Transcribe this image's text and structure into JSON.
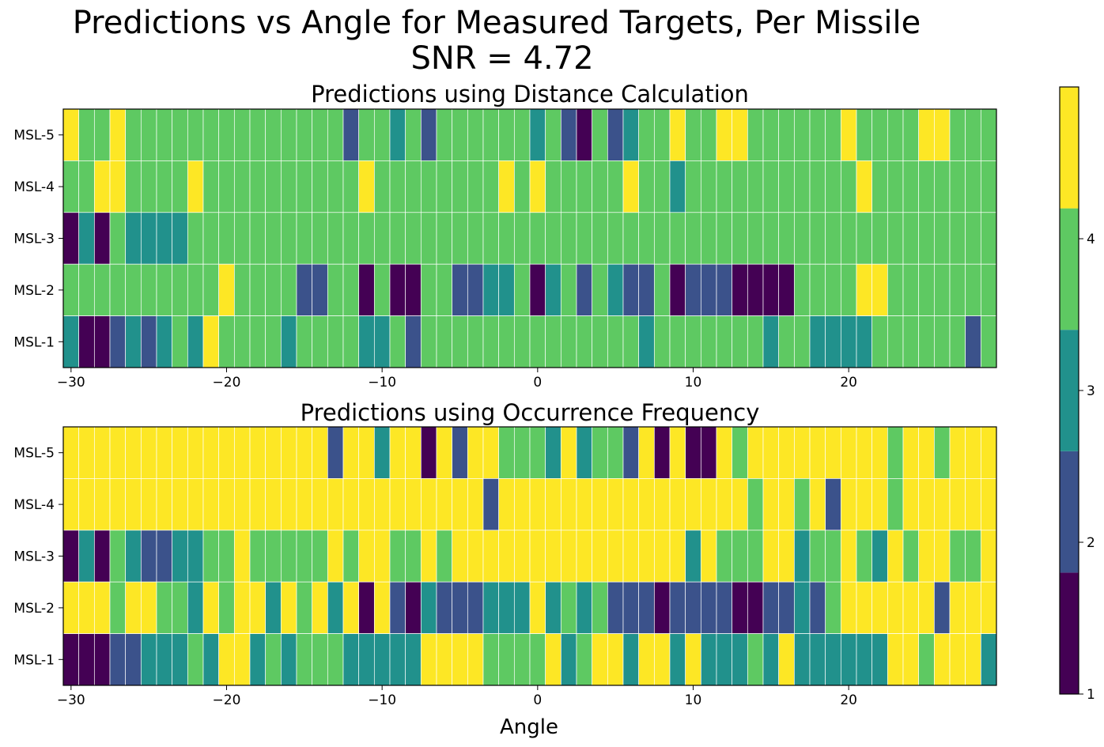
{
  "suptitle": {
    "line1": "Predictions vs Angle for Measured Targets, Per Missile",
    "line2": "SNR = 4.72"
  },
  "xlabel": "Angle",
  "colormap": {
    "name": "viridis",
    "colors": {
      "1": "#440154",
      "2": "#3b528b",
      "3": "#21918c",
      "4": "#5ec962",
      "5": "#fde725"
    },
    "ticks": [
      "1",
      "2",
      "3",
      "4"
    ],
    "range": [
      1,
      5
    ]
  },
  "chart_data": [
    {
      "type": "heatmap",
      "title": "Predictions using Distance Calculation",
      "x_start": -30,
      "x_step": 1,
      "xlim": [
        -30.5,
        29.5
      ],
      "xticks": [
        "−30",
        "−20",
        "−10",
        "0",
        "10",
        "20"
      ],
      "xtick_values": [
        -30,
        -20,
        -10,
        0,
        10,
        20
      ],
      "rows": [
        "MSL-5",
        "MSL-4",
        "MSL-3",
        "MSL-2",
        "MSL-1"
      ],
      "grid": true,
      "values": [
        "54454444444444444424434244444434214234454455444444544445544444",
        "44554444544444444445444444445454444454434444444444454444444454444",
        "131433334444444444444444444444444444444444444444444444444444544",
        "444444444454444224414114422334134243224122211114444554444444454444",
        "311232343544443444433424444444444444434444444344333344444424443441544522"
      ]
    },
    {
      "type": "heatmap",
      "title": "Predictions using Occurrence Frequency",
      "x_start": -30,
      "x_step": 1,
      "xlim": [
        -30.5,
        29.5
      ],
      "xticks": [
        "−30",
        "−20",
        "−10",
        "0",
        "10",
        "20"
      ],
      "xtick_values": [
        -30,
        -20,
        -10,
        0,
        10,
        20
      ],
      "rows": [
        "MSL-5",
        "MSL-4",
        "MSL-3",
        "MSL-2",
        "MSL-1"
      ],
      "grid": true,
      "values": [
        "5555555555555555525535515255444353442515115455555555545545554555",
        "5555555555555555555555555552555555555555555545545255545555555555",
        "131432233445444445455445455555555555555535444553445435455445555555",
        "555455443545535453515213222333534342221222211223245555552555544",
        "111223334355343444333335555444453455355353334353333335545553443555445115"
      ]
    }
  ]
}
